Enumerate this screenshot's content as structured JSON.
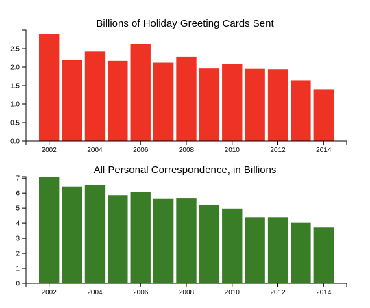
{
  "chart_data": [
    {
      "type": "bar",
      "title": "Billions of Holiday Greeting Cards Sent",
      "x": [
        2002,
        2003,
        2004,
        2005,
        2006,
        2007,
        2008,
        2009,
        2010,
        2011,
        2012,
        2013,
        2014
      ],
      "values": [
        2.9,
        2.2,
        2.42,
        2.17,
        2.62,
        2.12,
        2.28,
        1.96,
        2.08,
        1.95,
        1.94,
        1.64,
        1.4
      ],
      "x_ticks": [
        "2002",
        "2004",
        "2006",
        "2008",
        "2010",
        "2012",
        "2014"
      ],
      "y_ticks": [
        "0.0",
        "0.5",
        "1.0",
        "1.5",
        "2.0",
        "2.5"
      ],
      "ylim": [
        0,
        3.0
      ],
      "xlabel": "",
      "ylabel": "",
      "color": "#ee3224",
      "grid": false
    },
    {
      "type": "bar",
      "title": "All Personal Correspondence, in Billions",
      "x": [
        2002,
        2003,
        2004,
        2005,
        2006,
        2007,
        2008,
        2009,
        2010,
        2011,
        2012,
        2013,
        2014
      ],
      "values": [
        7.1,
        6.43,
        6.53,
        5.86,
        6.06,
        5.61,
        5.64,
        5.23,
        4.97,
        4.4,
        4.4,
        4.02,
        3.72
      ],
      "x_ticks": [
        "2002",
        "2004",
        "2006",
        "2008",
        "2010",
        "2012",
        "2014"
      ],
      "y_ticks": [
        "0",
        "1",
        "2",
        "3",
        "4",
        "5",
        "6",
        "7"
      ],
      "ylim": [
        0,
        7.1
      ],
      "xlabel": "",
      "ylabel": "",
      "color": "#3a7d27",
      "grid": false
    }
  ]
}
